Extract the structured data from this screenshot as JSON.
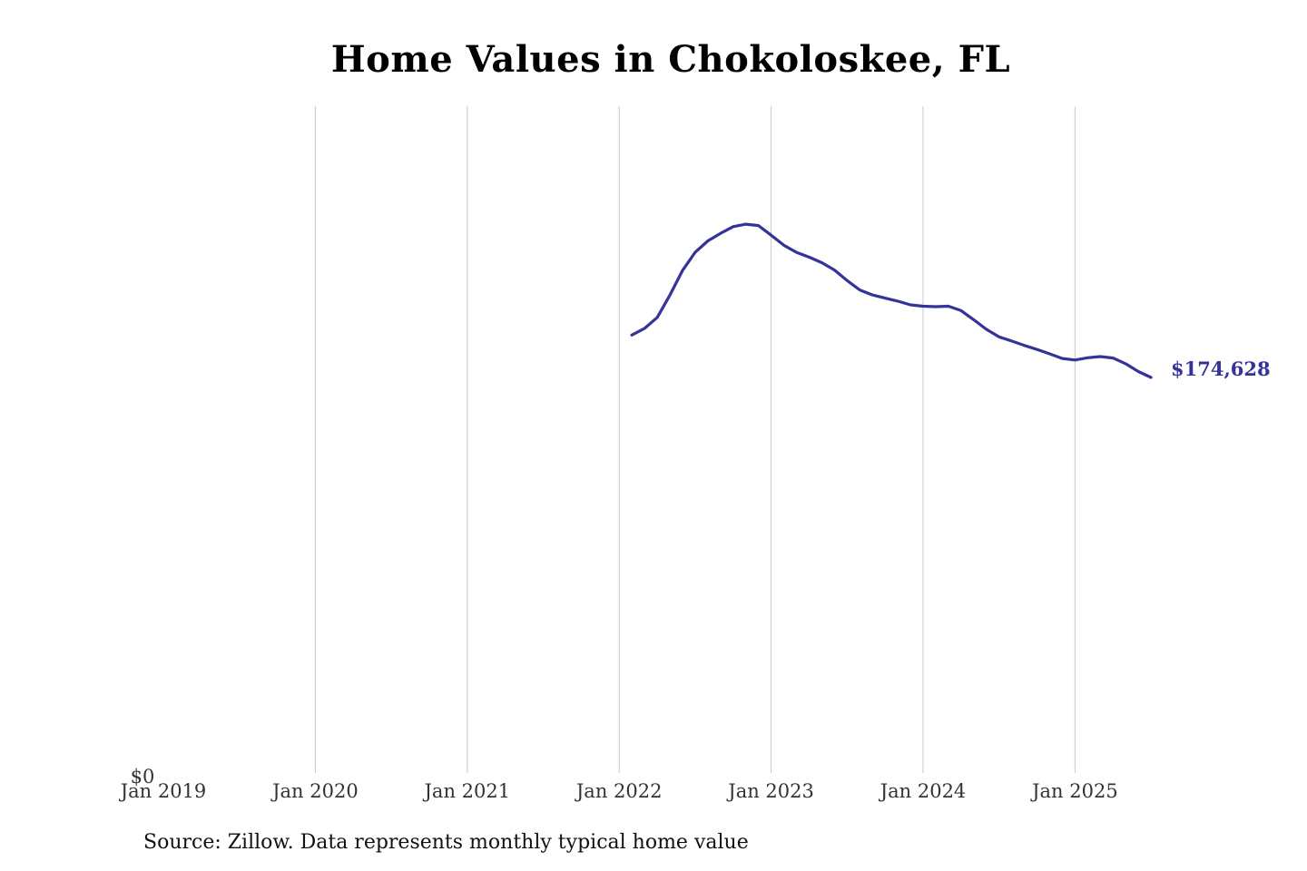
{
  "title": "Home Values in Chokoloskee, FL",
  "source": "Source: Zillow. Data represents monthly typical home value",
  "colors": {
    "line": "#35339a",
    "grid": "#c8c8c8",
    "tick_text": "#333333",
    "end_label": "#35339a"
  },
  "chart_data": {
    "type": "line",
    "title": "Home Values in Chokoloskee, FL",
    "xlabel": "",
    "ylabel": "",
    "x_ticks": [
      "Jan 2019",
      "Jan 2020",
      "Jan 2021",
      "Jan 2022",
      "Jan 2023",
      "Jan 2024",
      "Jan 2025"
    ],
    "y_ticks": [
      {
        "value": 0,
        "label": "$0"
      }
    ],
    "xlim": [
      "2019-01",
      "2025-07"
    ],
    "ylim": [
      0,
      293000
    ],
    "grid": "vertical lines at x ticks",
    "end_label": "$174,628",
    "series": [
      {
        "x": [
          "2022-02",
          "2022-03",
          "2022-04",
          "2022-05",
          "2022-06",
          "2022-07",
          "2022-08",
          "2022-09",
          "2022-10",
          "2022-11",
          "2022-12",
          "2023-01",
          "2023-02",
          "2023-03",
          "2023-04",
          "2023-05",
          "2023-06",
          "2023-07",
          "2023-08",
          "2023-09",
          "2023-10",
          "2023-11",
          "2023-12",
          "2024-01",
          "2024-02",
          "2024-03",
          "2024-04",
          "2024-05",
          "2024-06",
          "2024-07",
          "2024-08",
          "2024-09",
          "2024-10",
          "2024-11",
          "2024-12",
          "2025-01",
          "2025-02",
          "2025-03",
          "2025-04",
          "2025-05",
          "2025-06",
          "2025-07"
        ],
        "values": [
          193100,
          196000,
          200800,
          210500,
          221300,
          229200,
          234200,
          237500,
          240400,
          241500,
          240900,
          236700,
          232300,
          229200,
          227100,
          224700,
          221500,
          216900,
          212800,
          210600,
          209200,
          207900,
          206300,
          205700,
          205500,
          205700,
          203800,
          199800,
          195600,
          192300,
          190500,
          188600,
          186800,
          184900,
          182900,
          182200,
          183200,
          183700,
          183100,
          180600,
          177200,
          174628
        ]
      }
    ]
  }
}
